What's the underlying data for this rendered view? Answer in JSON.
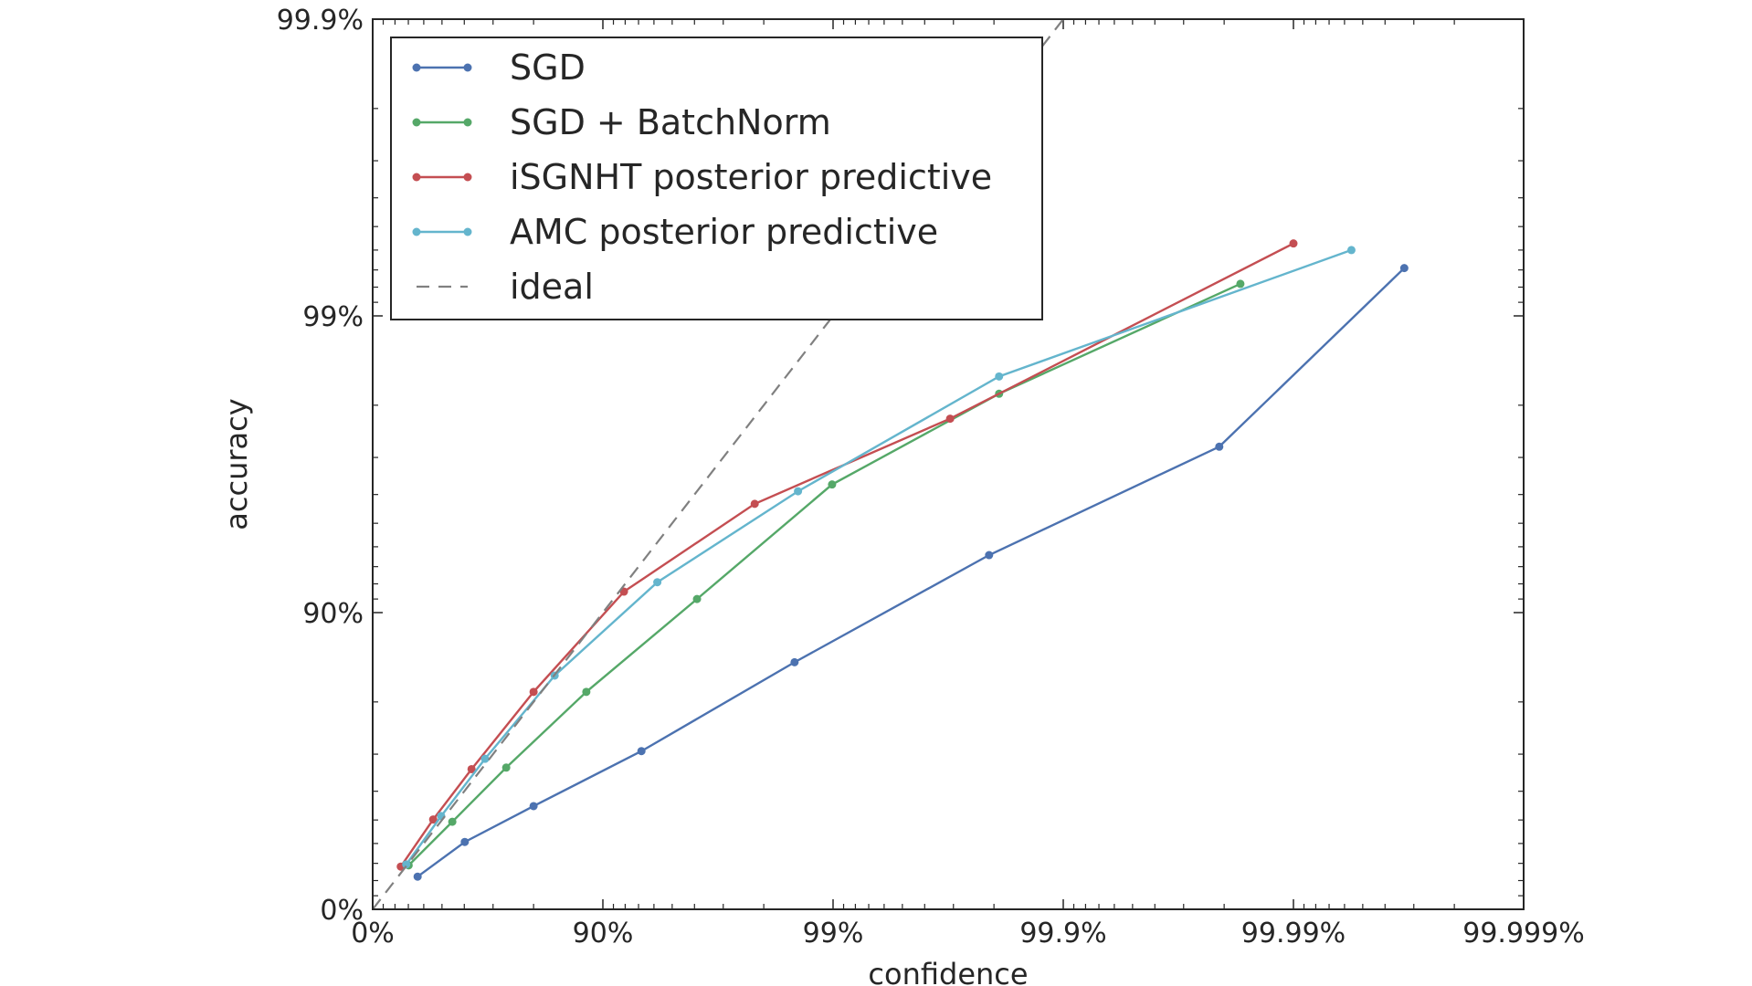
{
  "chart_data": {
    "type": "line",
    "title": "",
    "xlabel": "confidence",
    "ylabel": "accuracy",
    "x_scale": "logit-style, -log10(1-p)",
    "y_scale": "logit-style, -log10(1-p)",
    "xlim": [
      "0%",
      "99.999%"
    ],
    "ylim": [
      "0%",
      "99.9%"
    ],
    "x_ticks": [
      0,
      90,
      99,
      99.9,
      99.99,
      99.999
    ],
    "x_tick_labels": [
      "0%",
      "90%",
      "99%",
      "99.9%",
      "99.99%",
      "99.999%"
    ],
    "y_ticks": [
      0,
      90,
      99,
      99.9
    ],
    "y_tick_labels": [
      "0%",
      "90%",
      "99%",
      "99.9%"
    ],
    "grid": false,
    "legend_position": "top-left",
    "series": [
      {
        "name": "SGD",
        "color": "#4c72b0",
        "x": [
          36.2,
          60.2,
          80.0,
          93.2,
          98.53,
          99.79,
          99.979,
          99.9967
        ],
        "y": [
          22.4,
          40.7,
          55.1,
          70.7,
          85.3,
          93.6,
          97.24,
          99.31
        ]
      },
      {
        "name": "SGD + BatchNorm",
        "color": "#55a868",
        "x": [
          30.2,
          54.9,
          73.7,
          88.2,
          96.1,
          98.99,
          99.81,
          99.983
        ],
        "y": [
          28.9,
          49.3,
          66.7,
          81.5,
          91.0,
          96.3,
          98.17,
          99.22
        ]
      },
      {
        "name": "iSGNHT posterior predictive",
        "color": "#c44e52",
        "x": [
          24.5,
          45.4,
          62.8,
          80.0,
          91.9,
          97.81,
          99.69,
          99.99
        ],
        "y": [
          28.2,
          50.2,
          66.3,
          81.5,
          91.5,
          95.7,
          97.78,
          99.43
        ]
      },
      {
        "name": "AMC posterior predictive",
        "color": "#64b5cd",
        "x": [
          28.5,
          49.6,
          67.5,
          83.8,
          94.2,
          98.58,
          99.81,
          99.9944
        ],
        "y": [
          29.4,
          51.5,
          68.9,
          83.7,
          92.1,
          96.1,
          98.4,
          99.4
        ]
      },
      {
        "name": "ideal",
        "color": "#808080",
        "style": "dashed",
        "x": [
          0,
          99.9
        ],
        "y": [
          0,
          99.9
        ]
      }
    ]
  }
}
